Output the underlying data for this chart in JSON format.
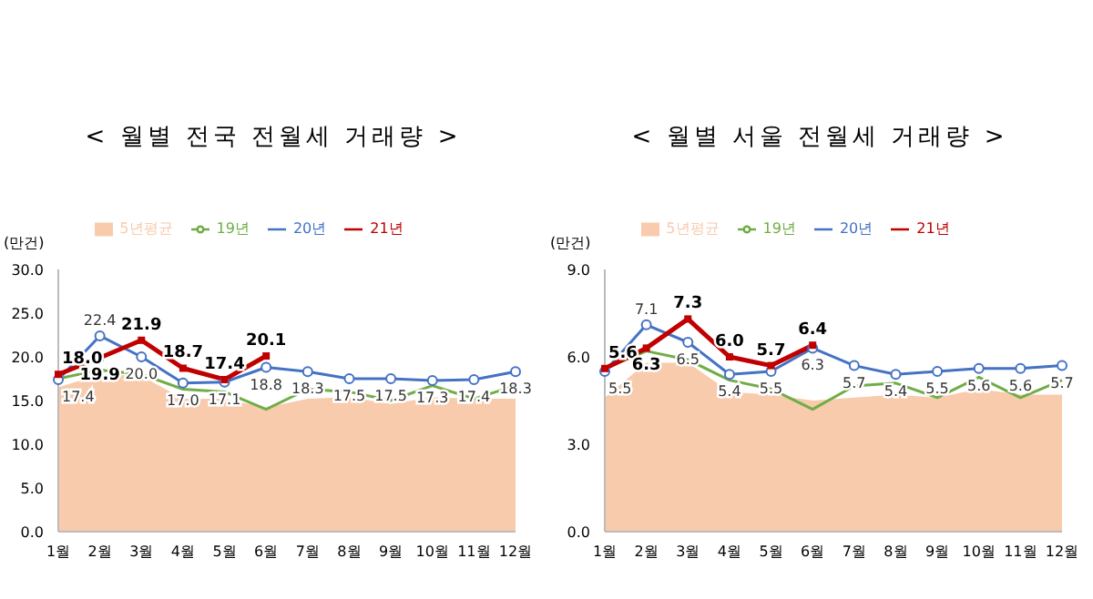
{
  "chart_data": [
    {
      "type": "line",
      "title": "< 월별 전국 전월세 거래량 >",
      "ylabel": "(만건)",
      "categories": [
        "1월",
        "2월",
        "3월",
        "4월",
        "5월",
        "6월",
        "7월",
        "8월",
        "9월",
        "10월",
        "11월",
        "12월"
      ],
      "ylim": [
        0,
        30
      ],
      "yticks": [
        {
          "value": 0,
          "label": "0.0"
        },
        {
          "value": 5,
          "label": "5.0"
        },
        {
          "value": 10,
          "label": "10.0"
        },
        {
          "value": 15,
          "label": "15.0"
        },
        {
          "value": 20,
          "label": "20.0"
        },
        {
          "value": 25,
          "label": "25.0"
        },
        {
          "value": 30,
          "label": "30.0"
        }
      ],
      "legend": "top",
      "grid": false,
      "series": [
        {
          "name": "5년평균",
          "type": "area",
          "color": "#f8cbad",
          "values": [
            16.5,
            18.0,
            17.8,
            15.2,
            15.2,
            14.2,
            15.2,
            15.4,
            14.6,
            15.4,
            15.2,
            15.2
          ]
        },
        {
          "name": "19년",
          "type": "line",
          "color": "#70ad47",
          "marker": "none",
          "values": [
            17.5,
            18.5,
            18.0,
            16.3,
            16.0,
            14.0,
            16.3,
            16.0,
            15.0,
            16.7,
            15.2,
            16.7
          ]
        },
        {
          "name": "20년",
          "type": "line",
          "color": "#4472c4",
          "marker": "circle",
          "values": [
            17.4,
            22.4,
            20.0,
            17.0,
            17.1,
            18.8,
            18.3,
            17.5,
            17.5,
            17.3,
            17.4,
            18.3
          ],
          "value_labels": [
            "17.4",
            "22.4",
            "20.0",
            "17.0",
            "17.1",
            "18.8",
            "18.3",
            "17.5",
            "17.5",
            "17.3",
            "17.4",
            "18.3"
          ]
        },
        {
          "name": "21년",
          "type": "line",
          "color": "#c00000",
          "marker": "square",
          "values": [
            18.0,
            19.9,
            21.9,
            18.7,
            17.4,
            20.1,
            null,
            null,
            null,
            null,
            null,
            null
          ],
          "value_labels": [
            "18.0",
            "19.9",
            "21.9",
            "18.7",
            "17.4",
            "20.1",
            null,
            null,
            null,
            null,
            null,
            null
          ]
        }
      ]
    },
    {
      "type": "line",
      "title": "< 월별 서울 전월세 거래량 >",
      "ylabel": "(만건)",
      "categories": [
        "1월",
        "2월",
        "3월",
        "4월",
        "5월",
        "6월",
        "7월",
        "8월",
        "9월",
        "10월",
        "11월",
        "12월"
      ],
      "ylim": [
        0,
        9
      ],
      "yticks": [
        {
          "value": 0,
          "label": "0.0"
        },
        {
          "value": 3,
          "label": "3.0"
        },
        {
          "value": 6,
          "label": "6.0"
        },
        {
          "value": 9,
          "label": "9.0"
        }
      ],
      "legend": "top",
      "grid": false,
      "series": [
        {
          "name": "5년평균",
          "type": "area",
          "color": "#f8cbad",
          "values": [
            4.6,
            5.8,
            5.8,
            4.8,
            4.7,
            4.5,
            4.6,
            4.7,
            4.6,
            4.9,
            4.7,
            4.7
          ]
        },
        {
          "name": "19년",
          "type": "line",
          "color": "#70ad47",
          "marker": "none",
          "values": [
            5.6,
            6.2,
            5.9,
            5.2,
            4.9,
            4.2,
            5.0,
            5.1,
            4.6,
            5.3,
            4.6,
            5.2
          ]
        },
        {
          "name": "20년",
          "type": "line",
          "color": "#4472c4",
          "marker": "circle",
          "values": [
            5.5,
            7.1,
            6.5,
            5.4,
            5.5,
            6.3,
            5.7,
            5.4,
            5.5,
            5.6,
            5.6,
            5.7
          ],
          "value_labels": [
            "5.5",
            "7.1",
            "6.5",
            "5.4",
            "5.5",
            "6.3",
            "5.7",
            "5.4",
            "5.5",
            "5.6",
            "5.6",
            "5.7"
          ]
        },
        {
          "name": "21년",
          "type": "line",
          "color": "#c00000",
          "marker": "square",
          "values": [
            5.6,
            6.3,
            7.3,
            6.0,
            5.7,
            6.4,
            null,
            null,
            null,
            null,
            null,
            null
          ],
          "value_labels": [
            "5.6",
            "6.3",
            "7.3",
            "6.0",
            "5.7",
            "6.4",
            null,
            null,
            null,
            null,
            null,
            null
          ]
        }
      ]
    }
  ]
}
